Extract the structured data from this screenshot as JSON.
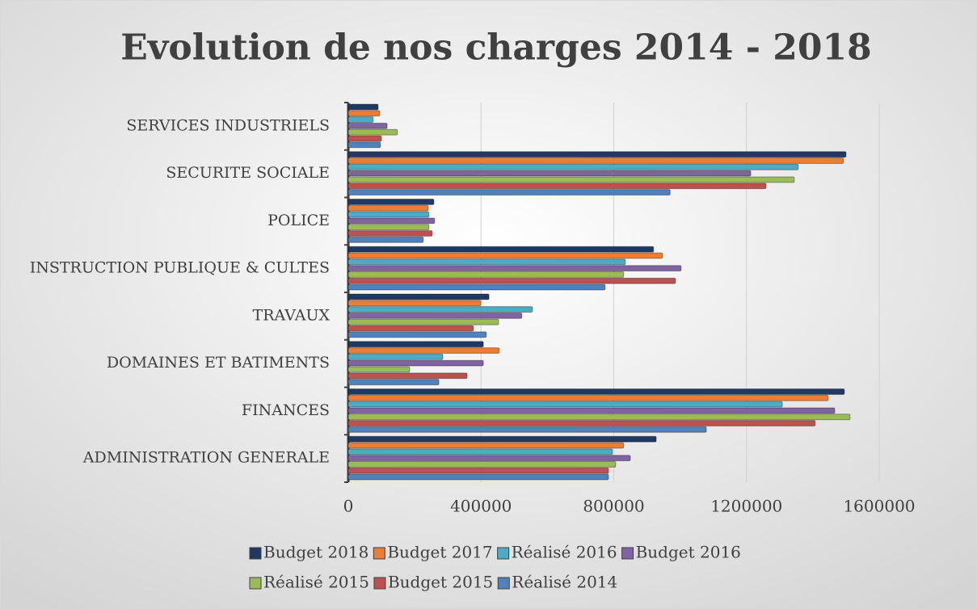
{
  "chart_data": {
    "type": "hbar",
    "title": "Evolution de nos charges 2014 - 2018",
    "categories": [
      "SERVICES INDUSTRIELS",
      "SECURITE SOCIALE",
      "POLICE",
      "INSTRUCTION PUBLIQUE & CULTES",
      "TRAVAUX",
      "DOMAINES ET BATIMENTS",
      "FINANCES",
      "ADMINISTRATION GENERALE"
    ],
    "series": [
      {
        "name": "Budget 2018",
        "color": "#1f3864",
        "values": [
          90000,
          1500000,
          258000,
          920000,
          424000,
          407000,
          1495000,
          928000
        ]
      },
      {
        "name": "Budget 2017",
        "color": "#ed7d31",
        "values": [
          95000,
          1492000,
          241000,
          947000,
          399000,
          455000,
          1446000,
          830000
        ]
      },
      {
        "name": "Réalisé 2016",
        "color": "#4bacc6",
        "values": [
          75000,
          1356000,
          243000,
          835000,
          555000,
          285000,
          1308000,
          796000
        ]
      },
      {
        "name": "Budget 2016",
        "color": "#8064a2",
        "values": [
          117000,
          1213000,
          260000,
          1003000,
          523000,
          407000,
          1466000,
          850000
        ]
      },
      {
        "name": "Réalisé 2015",
        "color": "#9bbb59",
        "values": [
          148000,
          1344000,
          243000,
          830000,
          453000,
          185000,
          1512000,
          806000
        ]
      },
      {
        "name": "Budget 2015",
        "color": "#c0504d",
        "values": [
          100000,
          1259000,
          253000,
          986000,
          377000,
          358000,
          1407000,
          784000
        ]
      },
      {
        "name": "Réalisé 2014",
        "color": "#4f81bd",
        "values": [
          97000,
          970000,
          226000,
          774000,
          416000,
          273000,
          1079000,
          784000
        ]
      }
    ],
    "xlim": [
      0,
      1600000
    ],
    "xticks": [
      0,
      400000,
      800000,
      1200000,
      1600000
    ],
    "grid": true,
    "legend": "bottom"
  }
}
